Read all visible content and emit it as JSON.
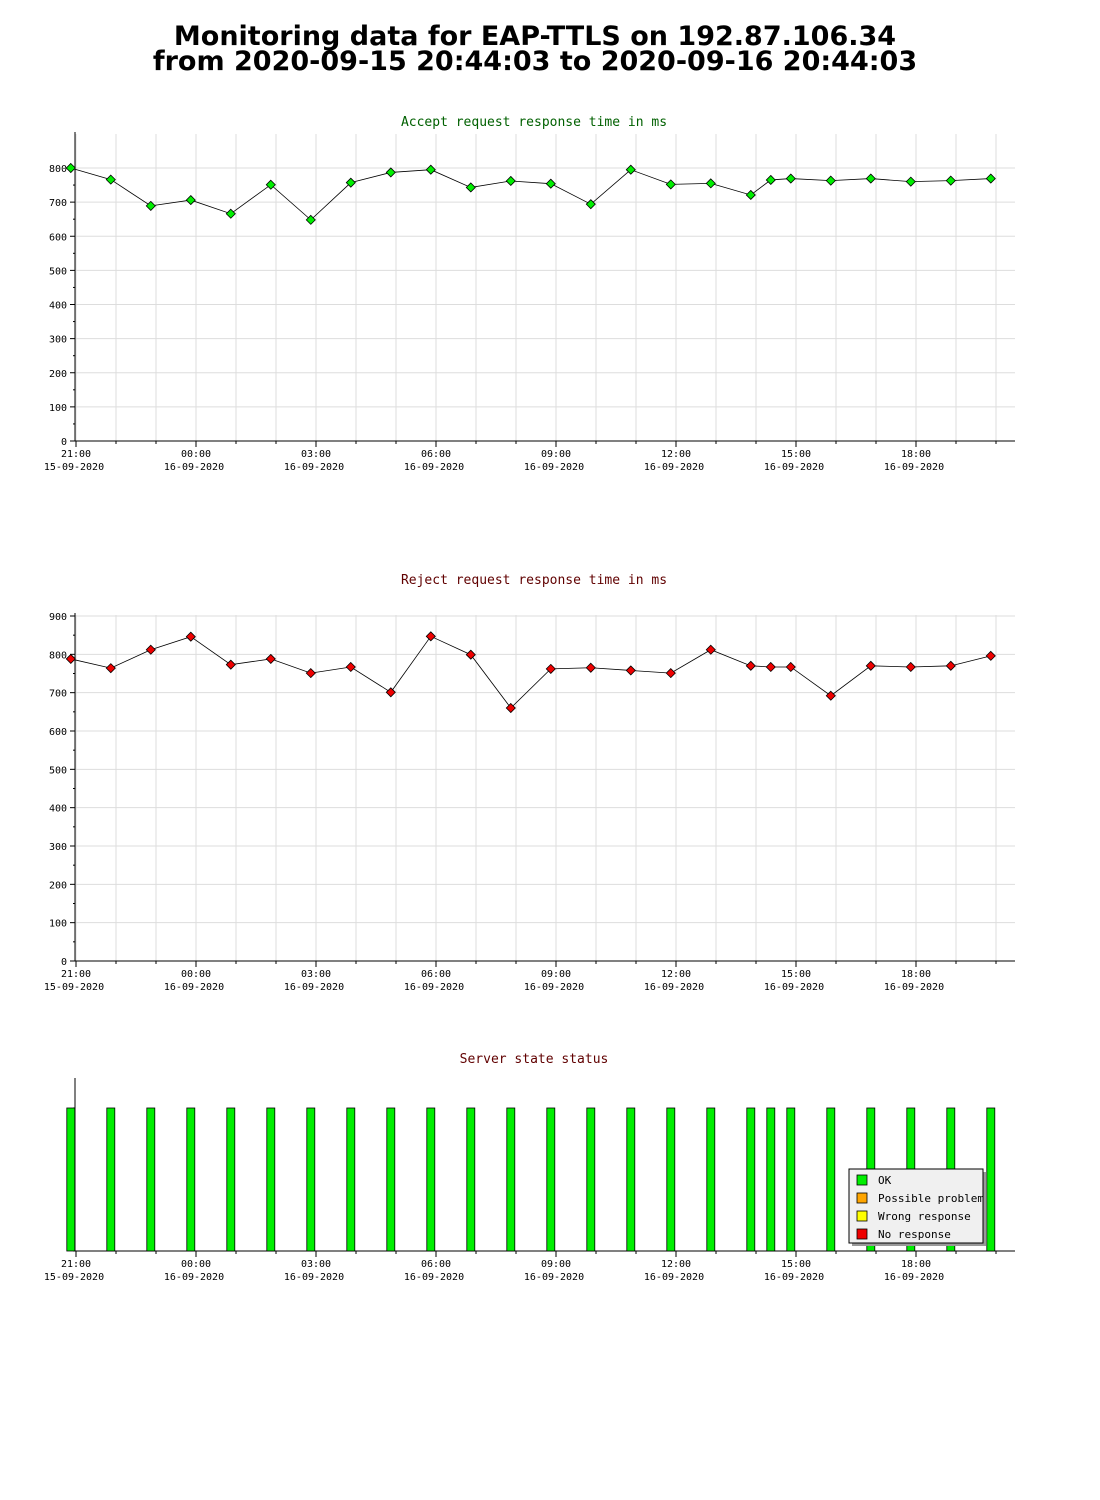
{
  "page": {
    "title_line1": "Monitoring data for EAP-TTLS on 192.87.106.34",
    "title_line2": "from 2020-09-15 20:44:03 to 2020-09-16 20:44:03"
  },
  "colors": {
    "accept_title": "#006000",
    "reject_title": "#600000",
    "status_title": "#600000",
    "accept_point": "#00ee00",
    "reject_point": "#ee0000",
    "ok": "#00ee00",
    "possible_problem": "#ffa500",
    "wrong_response": "#ffff00",
    "no_response": "#ee0000",
    "grid": "#dddddd"
  },
  "x_ticks": [
    {
      "time": "21:00",
      "date": "15-09-2020",
      "hour": 21
    },
    {
      "time": "00:00",
      "date": "16-09-2020",
      "hour": 24
    },
    {
      "time": "03:00",
      "date": "16-09-2020",
      "hour": 27
    },
    {
      "time": "06:00",
      "date": "16-09-2020",
      "hour": 30
    },
    {
      "time": "09:00",
      "date": "16-09-2020",
      "hour": 33
    },
    {
      "time": "12:00",
      "date": "16-09-2020",
      "hour": 36
    },
    {
      "time": "15:00",
      "date": "16-09-2020",
      "hour": 39
    },
    {
      "time": "18:00",
      "date": "16-09-2020",
      "hour": 42
    }
  ],
  "chart_data": [
    {
      "type": "line",
      "title": "Accept request response time in ms",
      "ylim": [
        0,
        800
      ],
      "yticks": [
        0,
        100,
        200,
        300,
        400,
        500,
        600,
        700,
        800
      ],
      "grid": true,
      "x_hours": [
        20.87,
        21.87,
        22.87,
        23.87,
        24.87,
        25.87,
        26.87,
        27.87,
        28.87,
        29.87,
        30.87,
        31.87,
        32.87,
        33.87,
        34.87,
        35.87,
        36.87,
        37.87,
        38.37,
        38.87,
        39.87,
        40.87,
        41.87,
        42.87,
        43.87
      ],
      "values": [
        800,
        766,
        689,
        706,
        666,
        751,
        648,
        757,
        787,
        795,
        743,
        762,
        754,
        694,
        795,
        752,
        755,
        721,
        765,
        769,
        763,
        769,
        760,
        763,
        769
      ]
    },
    {
      "type": "line",
      "title": "Reject request response time in ms",
      "ylim": [
        0,
        900
      ],
      "yticks": [
        0,
        100,
        200,
        300,
        400,
        500,
        600,
        700,
        800,
        900
      ],
      "grid": true,
      "x_hours": [
        20.87,
        21.87,
        22.87,
        23.87,
        24.87,
        25.87,
        26.87,
        27.87,
        28.87,
        29.87,
        30.87,
        31.87,
        32.87,
        33.87,
        34.87,
        35.87,
        36.87,
        37.87,
        38.37,
        38.87,
        39.87,
        40.87,
        41.87,
        42.87,
        43.87
      ],
      "values": [
        788,
        764,
        812,
        846,
        773,
        788,
        751,
        767,
        701,
        847,
        799,
        660,
        762,
        765,
        758,
        751,
        812,
        770,
        767,
        767,
        692,
        770,
        767,
        770,
        796
      ]
    },
    {
      "type": "bar",
      "title": "Server state status",
      "x_hours": [
        20.87,
        21.87,
        22.87,
        23.87,
        24.87,
        25.87,
        26.87,
        27.87,
        28.87,
        29.87,
        30.87,
        31.87,
        32.87,
        33.87,
        34.87,
        35.87,
        36.87,
        37.87,
        38.37,
        38.87,
        39.87,
        40.87,
        41.87,
        42.87,
        43.87
      ],
      "status": [
        "OK",
        "OK",
        "OK",
        "OK",
        "OK",
        "OK",
        "OK",
        "OK",
        "OK",
        "OK",
        "OK",
        "OK",
        "OK",
        "OK",
        "OK",
        "OK",
        "OK",
        "OK",
        "OK",
        "OK",
        "OK",
        "OK",
        "OK",
        "OK",
        "OK"
      ],
      "legend": [
        "OK",
        "Possible problem",
        "Wrong response",
        "No response"
      ],
      "legend_position": "bottom-right"
    }
  ]
}
